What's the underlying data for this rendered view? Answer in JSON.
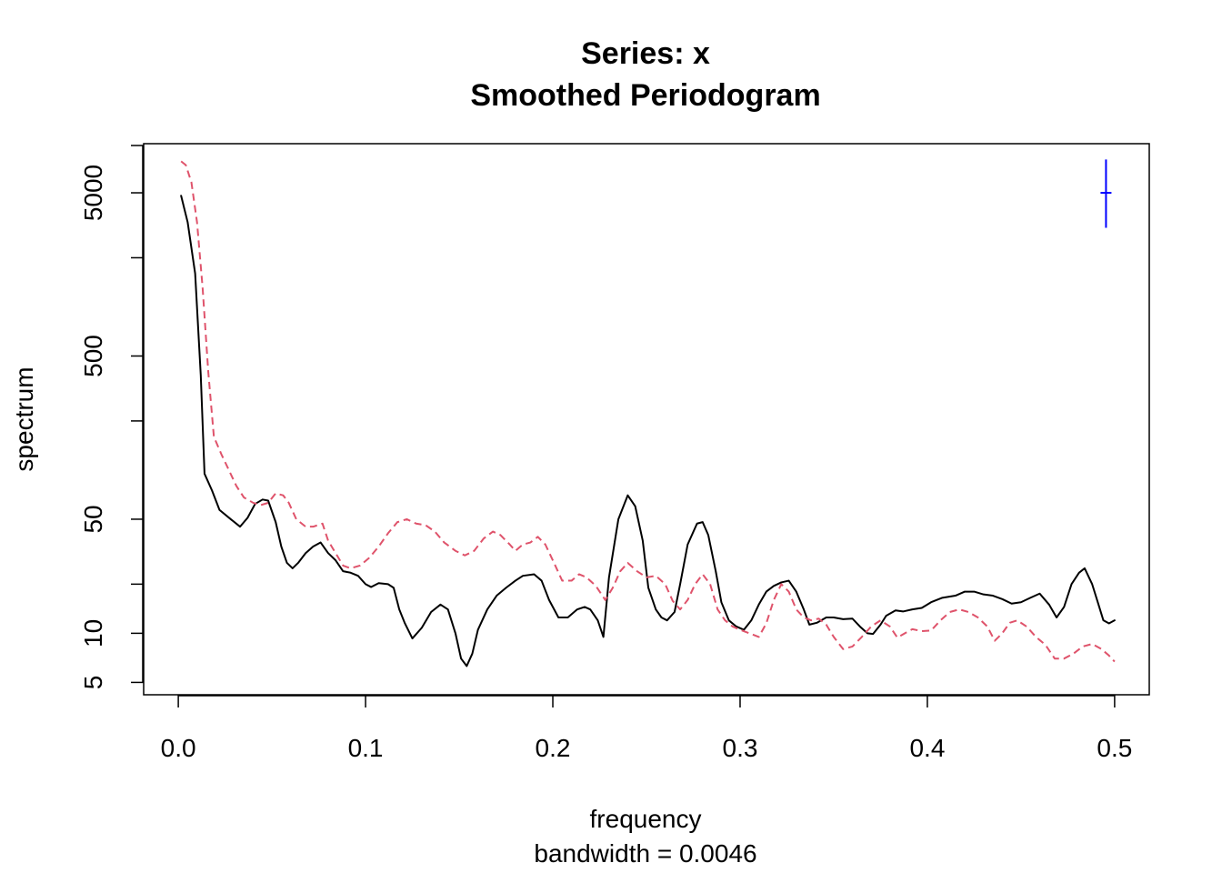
{
  "chart_data": {
    "type": "line",
    "title": "Series: x",
    "subtitle": "Smoothed Periodogram",
    "xlabel": "frequency",
    "xsublabel": "bandwidth = 0.0046",
    "ylabel": "spectrum",
    "xlim": [
      -0.0185,
      0.5185
    ],
    "ylim": [
      4.2,
      10000
    ],
    "y_scale": "log",
    "x_ticks": [
      "0.0",
      "0.1",
      "0.2",
      "0.3",
      "0.4",
      "0.5"
    ],
    "y_ticks_labeled": [
      "5",
      "10",
      "50",
      "500",
      "5000"
    ],
    "y_ticks_minor": [
      20,
      200,
      2000
    ],
    "grid": false,
    "legend": "none",
    "series": [
      {
        "color": "#000000",
        "dash": "solid",
        "points": [
          [
            0.0015,
            4800
          ],
          [
            0.005,
            3300
          ],
          [
            0.009,
            1600
          ],
          [
            0.012,
            380
          ],
          [
            0.014,
            95
          ],
          [
            0.018,
            75
          ],
          [
            0.022,
            57
          ],
          [
            0.028,
            50
          ],
          [
            0.033,
            45
          ],
          [
            0.037,
            51
          ],
          [
            0.041,
            62
          ],
          [
            0.045,
            66
          ],
          [
            0.048,
            65
          ],
          [
            0.052,
            48
          ],
          [
            0.055,
            34
          ],
          [
            0.058,
            27
          ],
          [
            0.061,
            25
          ],
          [
            0.064,
            27
          ],
          [
            0.068,
            31
          ],
          [
            0.072,
            34
          ],
          [
            0.076,
            36
          ],
          [
            0.08,
            31
          ],
          [
            0.084,
            28
          ],
          [
            0.088,
            24
          ],
          [
            0.092,
            23.5
          ],
          [
            0.096,
            22.5
          ],
          [
            0.1,
            20
          ],
          [
            0.103,
            19.2
          ],
          [
            0.107,
            20.3
          ],
          [
            0.112,
            20
          ],
          [
            0.115,
            19
          ],
          [
            0.118,
            14
          ],
          [
            0.121,
            11.5
          ],
          [
            0.125,
            9.3
          ],
          [
            0.13,
            10.8
          ],
          [
            0.135,
            13.5
          ],
          [
            0.14,
            15
          ],
          [
            0.144,
            14
          ],
          [
            0.148,
            10
          ],
          [
            0.151,
            7
          ],
          [
            0.154,
            6.3
          ],
          [
            0.157,
            7.5
          ],
          [
            0.16,
            10.5
          ],
          [
            0.165,
            14
          ],
          [
            0.17,
            17
          ],
          [
            0.175,
            19
          ],
          [
            0.18,
            21
          ],
          [
            0.184,
            22.5
          ],
          [
            0.19,
            23
          ],
          [
            0.194,
            21
          ],
          [
            0.198,
            16
          ],
          [
            0.203,
            12.5
          ],
          [
            0.208,
            12.5
          ],
          [
            0.213,
            14
          ],
          [
            0.217,
            14.5
          ],
          [
            0.22,
            14
          ],
          [
            0.224,
            12
          ],
          [
            0.227,
            9.5
          ],
          [
            0.23,
            22
          ],
          [
            0.235,
            50
          ],
          [
            0.24,
            70
          ],
          [
            0.244,
            60
          ],
          [
            0.248,
            37
          ],
          [
            0.251,
            19
          ],
          [
            0.255,
            14
          ],
          [
            0.258,
            12.5
          ],
          [
            0.261,
            12
          ],
          [
            0.265,
            13.5
          ],
          [
            0.268,
            20
          ],
          [
            0.272,
            35
          ],
          [
            0.277,
            47
          ],
          [
            0.28,
            48
          ],
          [
            0.283,
            40
          ],
          [
            0.287,
            24
          ],
          [
            0.29,
            15.5
          ],
          [
            0.294,
            12
          ],
          [
            0.298,
            11
          ],
          [
            0.302,
            10.5
          ],
          [
            0.306,
            12
          ],
          [
            0.31,
            15
          ],
          [
            0.314,
            18
          ],
          [
            0.318,
            19.5
          ],
          [
            0.322,
            20.5
          ],
          [
            0.326,
            21
          ],
          [
            0.33,
            18
          ],
          [
            0.334,
            14
          ],
          [
            0.337,
            11.3
          ],
          [
            0.341,
            11.6
          ],
          [
            0.346,
            12.5
          ],
          [
            0.35,
            12.5
          ],
          [
            0.355,
            12.2
          ],
          [
            0.36,
            12.3
          ],
          [
            0.364,
            11
          ],
          [
            0.368,
            10
          ],
          [
            0.371,
            9.9
          ],
          [
            0.375,
            11.3
          ],
          [
            0.378,
            12.8
          ],
          [
            0.383,
            13.8
          ],
          [
            0.387,
            13.6
          ],
          [
            0.392,
            14
          ],
          [
            0.397,
            14.3
          ],
          [
            0.402,
            15.5
          ],
          [
            0.408,
            16.5
          ],
          [
            0.415,
            17
          ],
          [
            0.42,
            18
          ],
          [
            0.425,
            18
          ],
          [
            0.43,
            17.3
          ],
          [
            0.435,
            17
          ],
          [
            0.44,
            16.2
          ],
          [
            0.445,
            15.2
          ],
          [
            0.45,
            15.5
          ],
          [
            0.455,
            16.5
          ],
          [
            0.46,
            17.5
          ],
          [
            0.465,
            15
          ],
          [
            0.469,
            12.5
          ],
          [
            0.473,
            14.5
          ],
          [
            0.477,
            20
          ],
          [
            0.481,
            23.5
          ],
          [
            0.484,
            25
          ],
          [
            0.488,
            20
          ],
          [
            0.491,
            15.5
          ],
          [
            0.494,
            12
          ],
          [
            0.497,
            11.5
          ],
          [
            0.5,
            12
          ]
        ]
      },
      {
        "color": "#DF536B",
        "dash": "dashed",
        "points": [
          [
            0.0015,
            7800
          ],
          [
            0.004,
            7400
          ],
          [
            0.007,
            5800
          ],
          [
            0.01,
            3300
          ],
          [
            0.013,
            1300
          ],
          [
            0.016,
            400
          ],
          [
            0.019,
            160
          ],
          [
            0.023,
            125
          ],
          [
            0.027,
            100
          ],
          [
            0.031,
            80
          ],
          [
            0.035,
            68
          ],
          [
            0.04,
            63
          ],
          [
            0.044,
            61
          ],
          [
            0.048,
            63
          ],
          [
            0.052,
            72
          ],
          [
            0.056,
            70
          ],
          [
            0.059,
            63
          ],
          [
            0.063,
            50
          ],
          [
            0.068,
            45
          ],
          [
            0.072,
            45
          ],
          [
            0.077,
            47
          ],
          [
            0.08,
            37
          ],
          [
            0.084,
            31
          ],
          [
            0.088,
            26
          ],
          [
            0.092,
            25
          ],
          [
            0.097,
            26
          ],
          [
            0.102,
            29
          ],
          [
            0.107,
            34
          ],
          [
            0.112,
            41
          ],
          [
            0.117,
            48
          ],
          [
            0.122,
            50
          ],
          [
            0.127,
            47
          ],
          [
            0.132,
            46
          ],
          [
            0.137,
            42
          ],
          [
            0.142,
            36
          ],
          [
            0.148,
            32
          ],
          [
            0.153,
            30
          ],
          [
            0.158,
            32
          ],
          [
            0.163,
            38
          ],
          [
            0.168,
            42
          ],
          [
            0.172,
            40
          ],
          [
            0.177,
            35
          ],
          [
            0.18,
            32
          ],
          [
            0.184,
            35
          ],
          [
            0.188,
            36
          ],
          [
            0.192,
            39
          ],
          [
            0.196,
            35
          ],
          [
            0.2,
            28
          ],
          [
            0.205,
            21
          ],
          [
            0.21,
            21
          ],
          [
            0.214,
            23
          ],
          [
            0.218,
            22
          ],
          [
            0.223,
            19.5
          ],
          [
            0.228,
            16
          ],
          [
            0.232,
            19
          ],
          [
            0.236,
            24
          ],
          [
            0.24,
            27
          ],
          [
            0.245,
            24
          ],
          [
            0.25,
            22
          ],
          [
            0.255,
            22.5
          ],
          [
            0.26,
            20
          ],
          [
            0.264,
            15.8
          ],
          [
            0.268,
            14
          ],
          [
            0.272,
            16
          ],
          [
            0.276,
            20
          ],
          [
            0.28,
            23
          ],
          [
            0.284,
            20
          ],
          [
            0.288,
            14
          ],
          [
            0.292,
            12
          ],
          [
            0.296,
            11
          ],
          [
            0.3,
            10.5
          ],
          [
            0.305,
            10
          ],
          [
            0.31,
            9.5
          ],
          [
            0.314,
            11.5
          ],
          [
            0.318,
            16
          ],
          [
            0.322,
            20
          ],
          [
            0.326,
            18
          ],
          [
            0.33,
            14
          ],
          [
            0.334,
            12.5
          ],
          [
            0.338,
            12
          ],
          [
            0.342,
            12.3
          ],
          [
            0.346,
            11.3
          ],
          [
            0.35,
            9.5
          ],
          [
            0.355,
            8
          ],
          [
            0.36,
            8.3
          ],
          [
            0.365,
            9.5
          ],
          [
            0.37,
            11
          ],
          [
            0.375,
            12
          ],
          [
            0.38,
            11
          ],
          [
            0.384,
            9.4
          ],
          [
            0.388,
            10
          ],
          [
            0.392,
            10.6
          ],
          [
            0.397,
            10.3
          ],
          [
            0.402,
            10.4
          ],
          [
            0.407,
            12
          ],
          [
            0.412,
            13.5
          ],
          [
            0.417,
            14
          ],
          [
            0.422,
            13.5
          ],
          [
            0.427,
            12.5
          ],
          [
            0.432,
            11
          ],
          [
            0.436,
            9
          ],
          [
            0.44,
            10
          ],
          [
            0.444,
            11.6
          ],
          [
            0.448,
            12
          ],
          [
            0.453,
            11
          ],
          [
            0.458,
            9.5
          ],
          [
            0.463,
            8.5
          ],
          [
            0.468,
            7
          ],
          [
            0.473,
            7
          ],
          [
            0.478,
            7.5
          ],
          [
            0.483,
            8.3
          ],
          [
            0.488,
            8.6
          ],
          [
            0.493,
            8
          ],
          [
            0.497,
            7.3
          ],
          [
            0.5,
            6.7
          ]
        ]
      }
    ],
    "error_bar": {
      "color": "#0000FF",
      "x": 0.4954,
      "y_center": 5000,
      "y_low": 3050,
      "y_high": 8000
    }
  }
}
